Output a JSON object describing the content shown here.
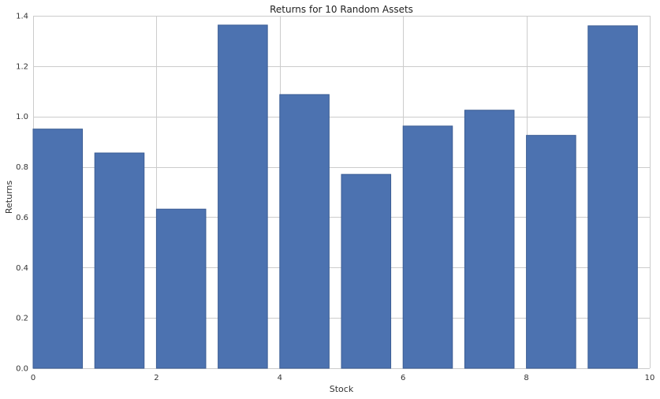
{
  "chart_data": {
    "type": "bar",
    "title": "Returns for 10 Random Assets",
    "xlabel": "Stock",
    "ylabel": "Returns",
    "x": [
      0,
      1,
      2,
      3,
      4,
      5,
      6,
      7,
      8,
      9
    ],
    "values": [
      0.95,
      0.855,
      0.632,
      1.363,
      1.087,
      0.77,
      0.962,
      1.025,
      0.925,
      1.36
    ],
    "bar_width": 0.8,
    "bar_align": "edge",
    "xlim": [
      0,
      10
    ],
    "ylim": [
      0,
      1.4
    ],
    "xticks": [
      0,
      2,
      4,
      6,
      8,
      10
    ],
    "xtick_labels": [
      "0",
      "2",
      "4",
      "6",
      "8",
      "10"
    ],
    "yticks": [
      0.0,
      0.2,
      0.4,
      0.6,
      0.8,
      1.0,
      1.2,
      1.4
    ],
    "ytick_labels": [
      "0.0",
      "0.2",
      "0.4",
      "0.6",
      "0.8",
      "1.0",
      "1.2",
      "1.4"
    ],
    "grid": true,
    "bar_color": "#4c72b0",
    "bar_edge_color": "#3b5d94",
    "grid_color": "#cccccc"
  }
}
